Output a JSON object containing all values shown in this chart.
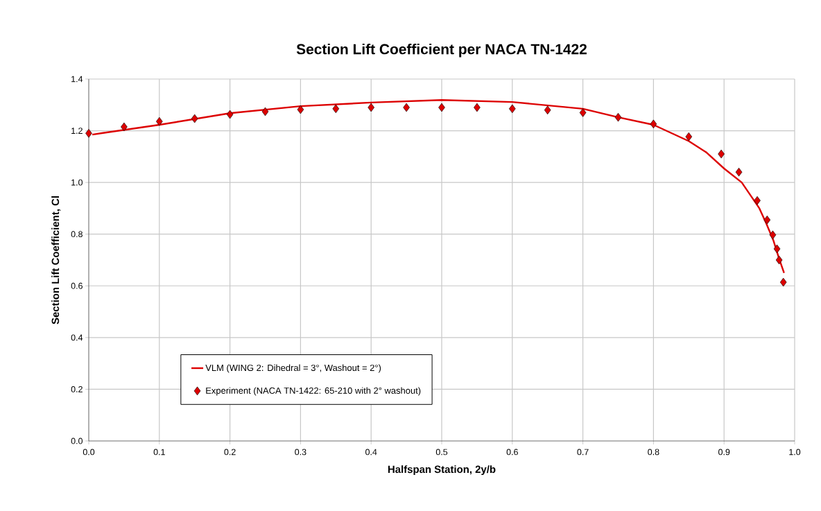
{
  "chart_data": {
    "type": "line",
    "title": "Section Lift Coefficient per NACA TN-1422",
    "xlabel": "Halfspan Station, 2y/b",
    "ylabel": "Section Lift Coefficient, Cl",
    "xlim": [
      0,
      1.0
    ],
    "xticks": [
      {
        "value": 0,
        "label": "0.0"
      },
      0.1,
      0.2,
      0.3,
      0.4,
      0.5,
      0.6,
      0.7,
      0.8,
      0.9,
      {
        "value": 1.0,
        "label": "1.0"
      }
    ],
    "ylim": [
      0,
      1.4
    ],
    "yticks": [
      {
        "value": 0,
        "label": "0.0"
      },
      0.2,
      0.4,
      0.6,
      0.8,
      {
        "value": 1.0,
        "label": "1.0"
      },
      1.2,
      1.4
    ],
    "grid": true,
    "legend": "bottom left",
    "series": [
      {
        "name": "VLM (WING 2: Dihedral = 3°, Washout = 2°)",
        "color": "#dd0000",
        "line_style": "solid",
        "marker": "none",
        "x": [
          0.005,
          0.017,
          0.1,
          0.2,
          0.3,
          0.4,
          0.5,
          0.6,
          0.7,
          0.75,
          0.8,
          0.85,
          0.875,
          0.9,
          0.925,
          0.95,
          0.96,
          0.97,
          0.978,
          0.985
        ],
        "values": [
          1.185,
          1.19,
          1.223,
          1.268,
          1.295,
          1.309,
          1.319,
          1.311,
          1.285,
          1.252,
          1.223,
          1.16,
          1.116,
          1.054,
          1.0,
          0.9,
          0.84,
          0.775,
          0.705,
          0.65
        ]
      },
      {
        "name": "Experiment (NACA TN-1422: 65-210 with 2° washout)",
        "type": "scatter",
        "color": "#dd0000",
        "marker": "diamond",
        "x": [
          0,
          0.05,
          0.1,
          0.15,
          0.2,
          0.25,
          0.3,
          0.35,
          0.4,
          0.45,
          0.5,
          0.55,
          0.6,
          0.65,
          0.7,
          0.75,
          0.8,
          0.85,
          0.896,
          0.921,
          0.947,
          0.961,
          0.969,
          0.975,
          0.978,
          0.984
        ],
        "values": [
          1.19,
          1.215,
          1.236,
          1.247,
          1.263,
          1.274,
          1.282,
          1.285,
          1.29,
          1.29,
          1.29,
          1.29,
          1.285,
          1.28,
          1.27,
          1.252,
          1.226,
          1.177,
          1.11,
          1.04,
          0.93,
          0.855,
          0.797,
          0.743,
          0.7,
          0.614
        ]
      }
    ]
  }
}
